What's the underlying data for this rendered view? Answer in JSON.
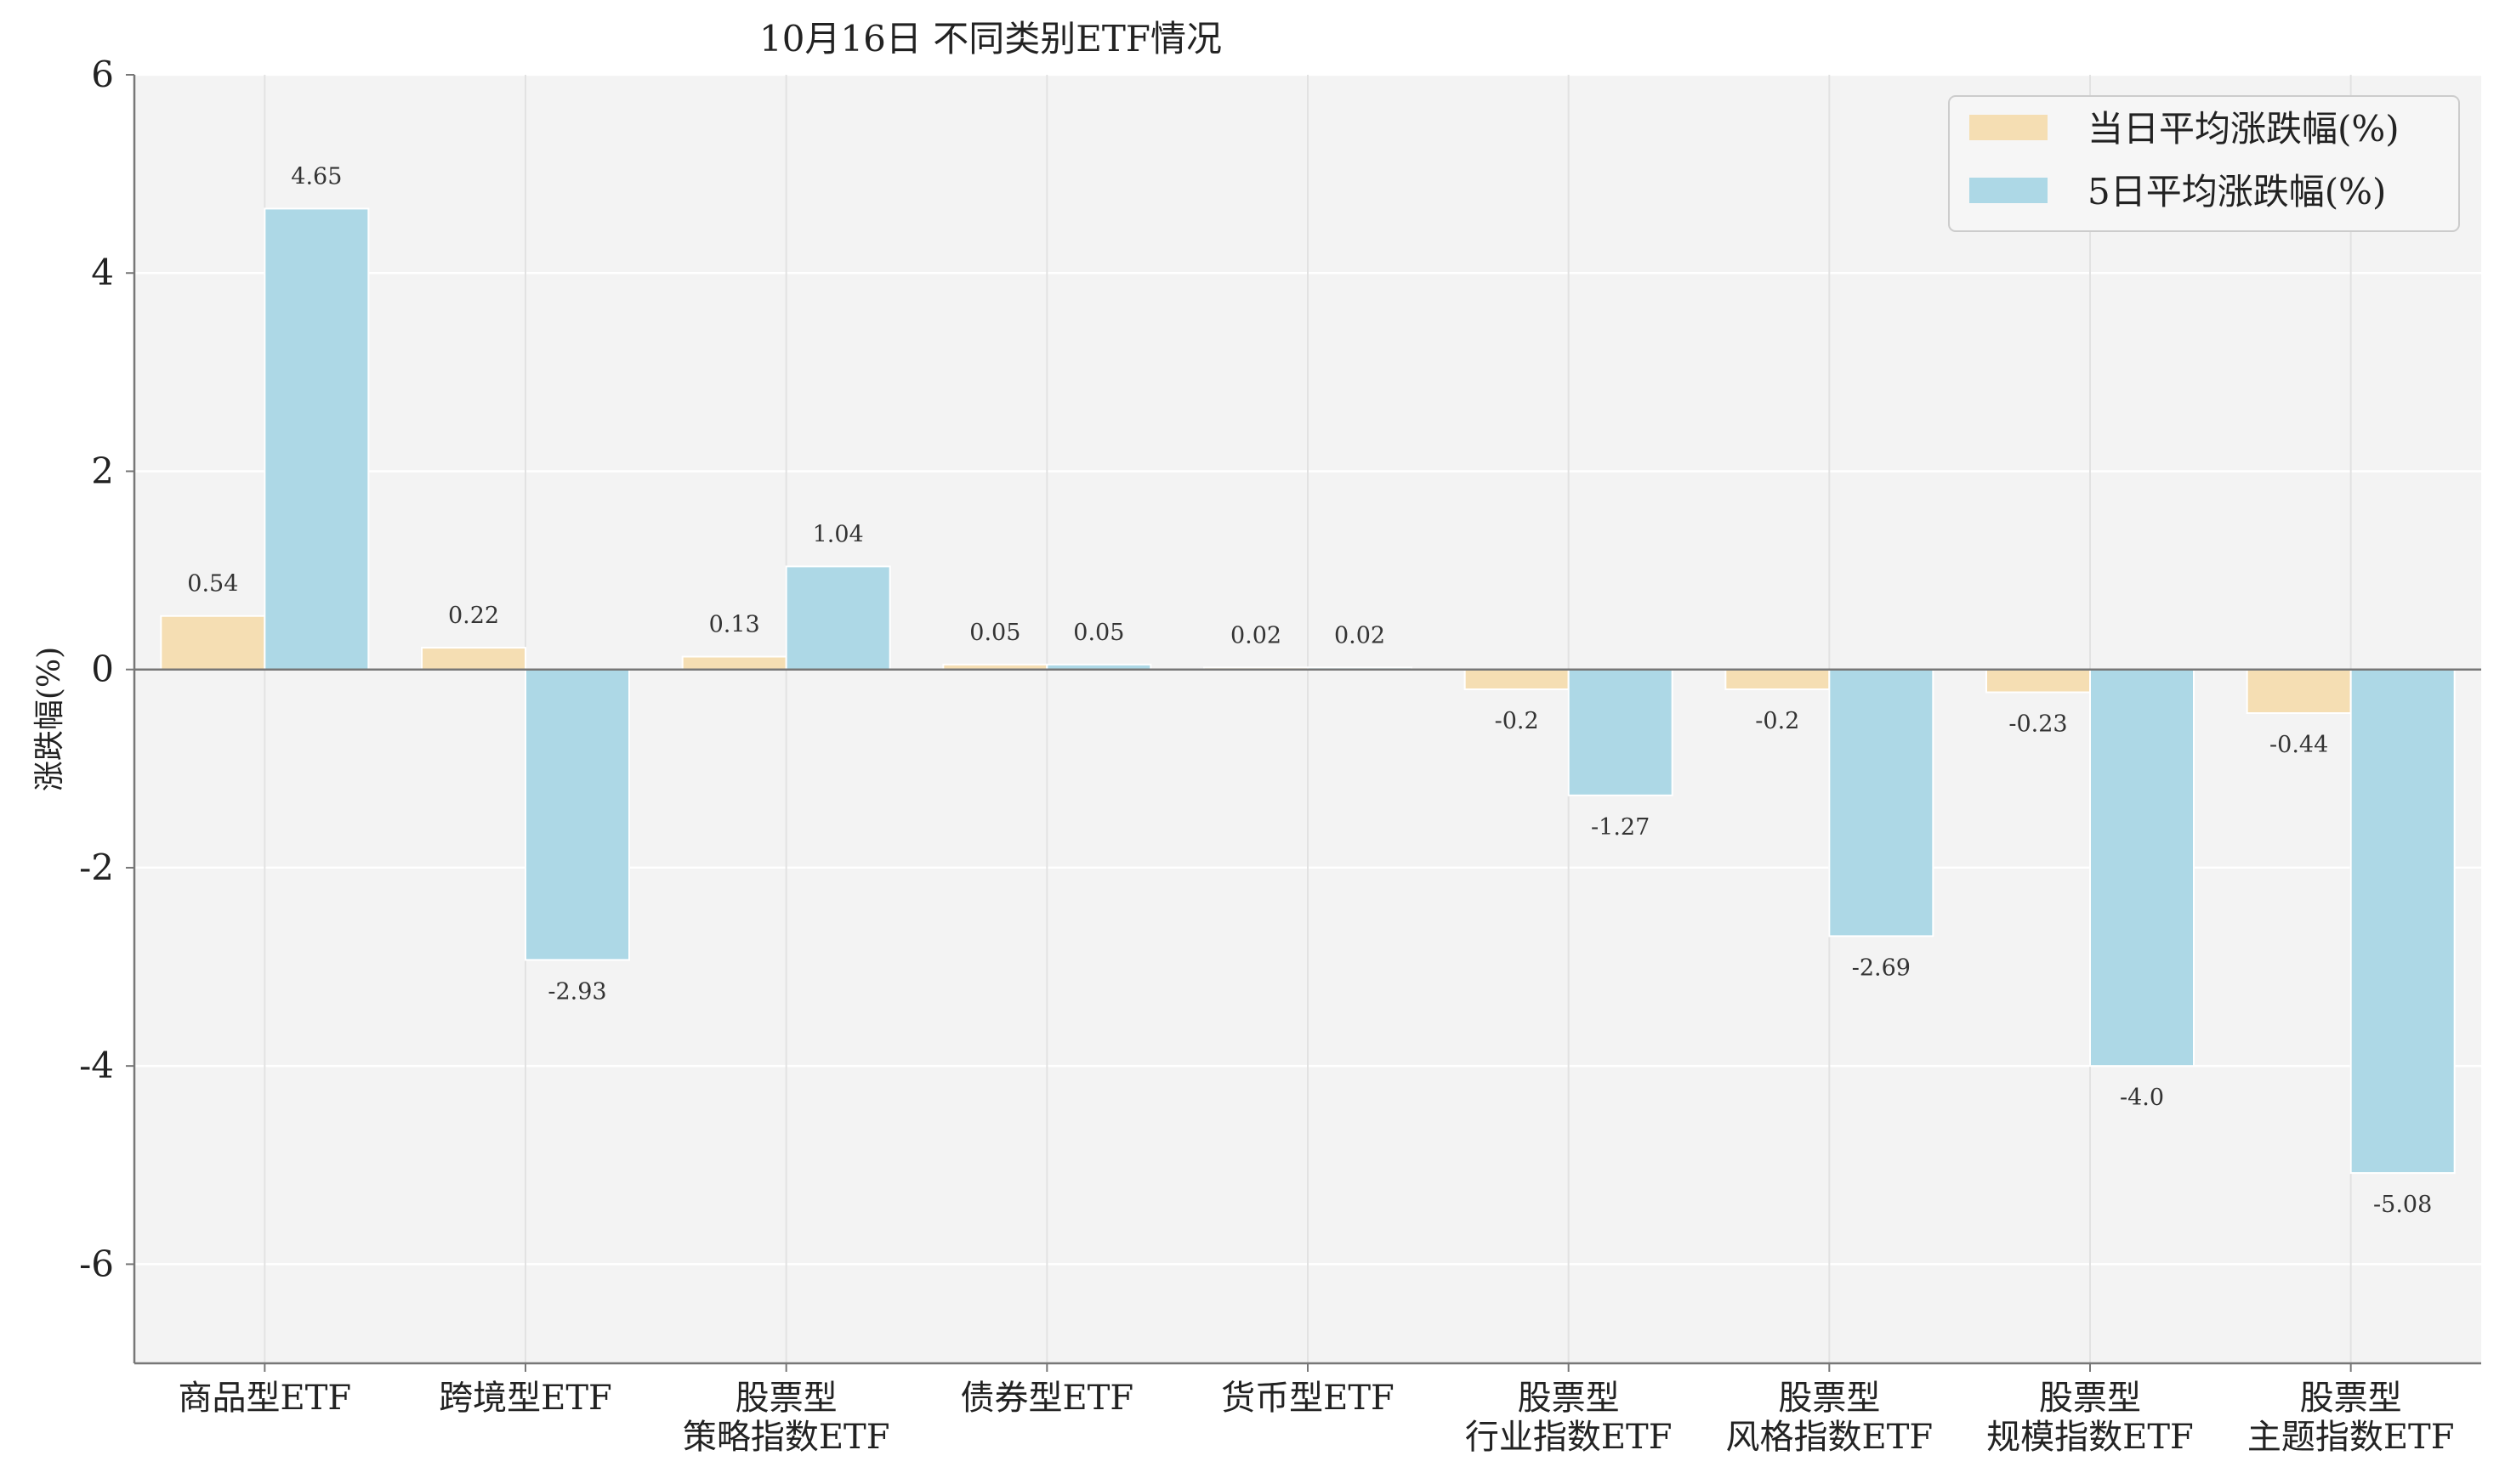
{
  "chart_data": {
    "type": "bar",
    "title": "10月16日 不同类别ETF情况",
    "xlabel": "",
    "ylabel": "涨跌幅(%)",
    "ylim": [
      -7,
      6
    ],
    "yticks": [
      6,
      4,
      2,
      0,
      -2,
      -4,
      -6
    ],
    "grid": true,
    "legend_position": "top-right",
    "categories": [
      [
        "商品型ETF"
      ],
      [
        "跨境型ETF"
      ],
      [
        "股票型",
        "策略指数ETF"
      ],
      [
        "债券型ETF"
      ],
      [
        "货币型ETF"
      ],
      [
        "股票型",
        "行业指数ETF"
      ],
      [
        "股票型",
        "风格指数ETF"
      ],
      [
        "股票型",
        "规模指数ETF"
      ],
      [
        "股票型",
        "主题指数ETF"
      ]
    ],
    "series": [
      {
        "name": "当日平均涨跌幅(%)",
        "color": "#f5deb3",
        "values": [
          0.54,
          0.22,
          0.13,
          0.05,
          0.02,
          -0.2,
          -0.2,
          -0.23,
          -0.44
        ],
        "labels": [
          "0.54",
          "0.22",
          "0.13",
          "0.05",
          "0.02",
          "-0.2",
          "-0.2",
          "-0.23",
          "-0.44"
        ]
      },
      {
        "name": "5日平均涨跌幅(%)",
        "color": "#add8e6",
        "values": [
          4.65,
          -2.93,
          1.04,
          0.05,
          0.02,
          -1.27,
          -2.69,
          -4.0,
          -5.08
        ],
        "labels": [
          "4.65",
          "-2.93",
          "1.04",
          "0.05",
          "0.02",
          "-1.27",
          "-2.69",
          "-4.0",
          "-5.08"
        ]
      }
    ]
  }
}
